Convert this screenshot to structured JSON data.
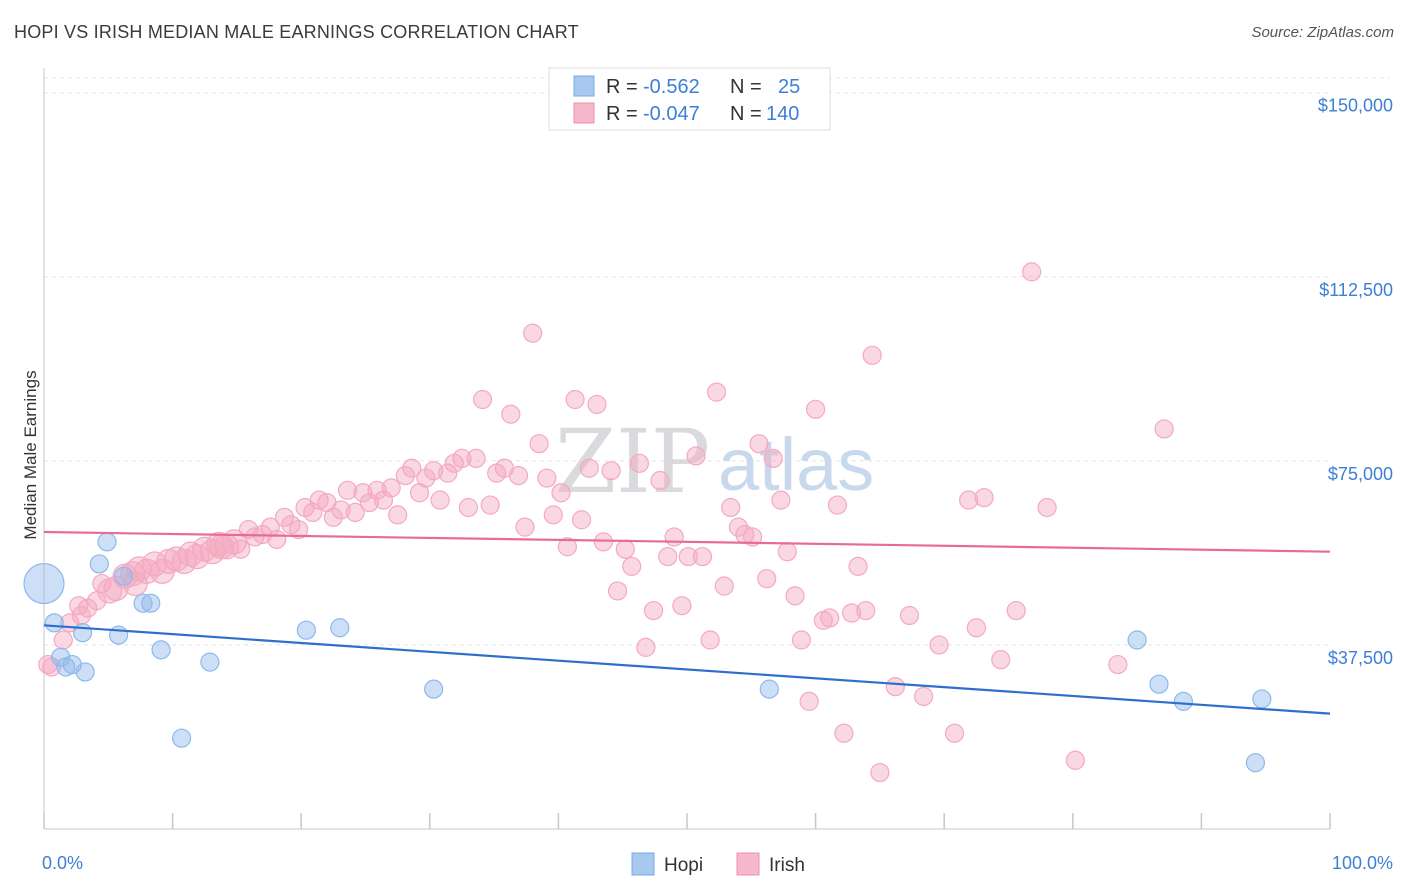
{
  "header": {
    "title": "HOPI VS IRISH MEDIAN MALE EARNINGS CORRELATION CHART",
    "source": "Source: ZipAtlas.com"
  },
  "watermark": {
    "zip": "ZIP",
    "atlas": "atlas"
  },
  "legend": {
    "rows": [
      {
        "r_label": "R = ",
        "r_value": "-0.562",
        "n_label": "N = ",
        "n_value": "25",
        "color": "#a8c8f0"
      },
      {
        "r_label": "R = ",
        "r_value": "-0.047",
        "n_label": "N = ",
        "n_value": "140",
        "color": "#f7b8cc"
      }
    ]
  },
  "chart_data": {
    "type": "scatter",
    "title": "HOPI VS IRISH MEDIAN MALE EARNINGS CORRELATION CHART",
    "ylabel": "Median Male Earnings",
    "xlabel": "",
    "xlim": [
      0,
      100
    ],
    "ylim": [
      0,
      153000
    ],
    "x_tick_labels": [
      "0.0%",
      "100.0%"
    ],
    "y_ticks": [
      {
        "value": 150000,
        "label": "$150,000"
      },
      {
        "value": 112500,
        "label": "$112,500"
      },
      {
        "value": 75000,
        "label": "$75,000"
      },
      {
        "value": 37500,
        "label": "$37,500"
      }
    ],
    "series": [
      {
        "name": "Hopi",
        "color": "#8db8ec",
        "trend": {
          "x": [
            0,
            100
          ],
          "y": [
            41500,
            23500
          ],
          "color": "#2f6fcc"
        },
        "points": [
          [
            0,
            50000
          ],
          [
            0.8,
            42000
          ],
          [
            1.3,
            35000
          ],
          [
            1.7,
            33000
          ],
          [
            2.2,
            33500
          ],
          [
            3.0,
            40000
          ],
          [
            3.2,
            32000
          ],
          [
            4.3,
            54000
          ],
          [
            4.9,
            58500
          ],
          [
            5.8,
            39500
          ],
          [
            6.2,
            51500
          ],
          [
            7.7,
            46000
          ],
          [
            8.3,
            46000
          ],
          [
            9.1,
            36500
          ],
          [
            10.7,
            18500
          ],
          [
            12.9,
            34000
          ],
          [
            20.4,
            40500
          ],
          [
            23.0,
            41000
          ],
          [
            30.3,
            28500
          ],
          [
            56.4,
            28500
          ],
          [
            85.0,
            38500
          ],
          [
            86.7,
            29500
          ],
          [
            88.6,
            26000
          ],
          [
            94.2,
            13500
          ],
          [
            94.7,
            26500
          ]
        ]
      },
      {
        "name": "Irish",
        "color": "#f4a9c0",
        "trend": {
          "x": [
            0,
            100
          ],
          "y": [
            60500,
            56500
          ],
          "color": "#e76b97"
        },
        "points": [
          [
            0.3,
            33500
          ],
          [
            1.5,
            38500
          ],
          [
            2.0,
            42000
          ],
          [
            2.7,
            45500
          ],
          [
            3.4,
            45000
          ],
          [
            4.1,
            46500
          ],
          [
            4.5,
            50000
          ],
          [
            5.1,
            48500
          ],
          [
            5.6,
            49000
          ],
          [
            6.3,
            51500
          ],
          [
            6.9,
            52000
          ],
          [
            7.4,
            53000
          ],
          [
            8.0,
            52500
          ],
          [
            8.6,
            54000
          ],
          [
            9.2,
            52500
          ],
          [
            9.7,
            54500
          ],
          [
            10.3,
            55000
          ],
          [
            10.9,
            54500
          ],
          [
            11.4,
            56000
          ],
          [
            11.9,
            55500
          ],
          [
            12.5,
            57000
          ],
          [
            13.1,
            56500
          ],
          [
            13.6,
            58000
          ],
          [
            14.2,
            57500
          ],
          [
            14.8,
            58500
          ],
          [
            15.3,
            57000
          ],
          [
            15.9,
            61000
          ],
          [
            16.4,
            59500
          ],
          [
            17.0,
            60000
          ],
          [
            17.6,
            61500
          ],
          [
            18.1,
            59000
          ],
          [
            18.7,
            63500
          ],
          [
            19.2,
            62000
          ],
          [
            19.8,
            61000
          ],
          [
            20.3,
            65500
          ],
          [
            20.9,
            64500
          ],
          [
            21.4,
            67000
          ],
          [
            22.0,
            66500
          ],
          [
            22.5,
            63500
          ],
          [
            23.1,
            65000
          ],
          [
            23.6,
            69000
          ],
          [
            24.2,
            64500
          ],
          [
            24.8,
            68500
          ],
          [
            25.3,
            66500
          ],
          [
            25.9,
            69000
          ],
          [
            26.4,
            67000
          ],
          [
            27.0,
            69500
          ],
          [
            27.5,
            64000
          ],
          [
            28.1,
            72000
          ],
          [
            28.6,
            73500
          ],
          [
            29.2,
            68500
          ],
          [
            29.7,
            71500
          ],
          [
            30.3,
            73000
          ],
          [
            30.8,
            67000
          ],
          [
            31.4,
            72500
          ],
          [
            31.9,
            74500
          ],
          [
            32.5,
            75500
          ],
          [
            33.0,
            65500
          ],
          [
            33.6,
            75500
          ],
          [
            34.1,
            87500
          ],
          [
            34.7,
            66000
          ],
          [
            35.2,
            72500
          ],
          [
            35.8,
            73500
          ],
          [
            36.3,
            84500
          ],
          [
            36.9,
            72000
          ],
          [
            37.4,
            61500
          ],
          [
            38.0,
            101000
          ],
          [
            38.5,
            78500
          ],
          [
            39.1,
            71500
          ],
          [
            39.6,
            64000
          ],
          [
            40.2,
            68500
          ],
          [
            40.7,
            57500
          ],
          [
            41.3,
            87500
          ],
          [
            41.8,
            63000
          ],
          [
            42.4,
            73500
          ],
          [
            43.0,
            86500
          ],
          [
            43.5,
            58500
          ],
          [
            44.1,
            73000
          ],
          [
            44.6,
            48500
          ],
          [
            45.2,
            57000
          ],
          [
            45.7,
            53500
          ],
          [
            46.3,
            74500
          ],
          [
            46.8,
            37000
          ],
          [
            47.4,
            44500
          ],
          [
            47.9,
            71000
          ],
          [
            48.5,
            55500
          ],
          [
            49.0,
            59500
          ],
          [
            49.6,
            45500
          ],
          [
            50.1,
            55500
          ],
          [
            50.7,
            76000
          ],
          [
            51.2,
            55500
          ],
          [
            51.8,
            38500
          ],
          [
            52.3,
            89000
          ],
          [
            52.9,
            49500
          ],
          [
            53.4,
            65500
          ],
          [
            54.0,
            61500
          ],
          [
            54.5,
            60000
          ],
          [
            55.1,
            59500
          ],
          [
            55.6,
            78500
          ],
          [
            56.2,
            51000
          ],
          [
            56.7,
            75500
          ],
          [
            57.3,
            67000
          ],
          [
            57.8,
            56500
          ],
          [
            58.4,
            47500
          ],
          [
            58.9,
            38500
          ],
          [
            59.5,
            26000
          ],
          [
            60.0,
            85500
          ],
          [
            60.6,
            42500
          ],
          [
            61.1,
            43000
          ],
          [
            61.7,
            66000
          ],
          [
            62.2,
            19500
          ],
          [
            62.8,
            44000
          ],
          [
            63.3,
            53500
          ],
          [
            63.9,
            44500
          ],
          [
            64.4,
            96500
          ],
          [
            65.0,
            11500
          ],
          [
            66.2,
            29000
          ],
          [
            67.3,
            43500
          ],
          [
            68.4,
            27000
          ],
          [
            69.6,
            37500
          ],
          [
            70.8,
            19500
          ],
          [
            71.9,
            67000
          ],
          [
            72.5,
            41000
          ],
          [
            73.1,
            67500
          ],
          [
            74.4,
            34500
          ],
          [
            75.6,
            44500
          ],
          [
            76.8,
            113500
          ],
          [
            78.0,
            65500
          ],
          [
            80.2,
            14000
          ],
          [
            83.5,
            33500
          ],
          [
            87.1,
            81500
          ],
          [
            0.6,
            33000
          ],
          [
            2.9,
            43500
          ],
          [
            7.1,
            50000
          ],
          [
            13.8,
            57500
          ]
        ]
      }
    ]
  },
  "bottom_legend": [
    {
      "label": "Hopi",
      "color": "#a8c8f0"
    },
    {
      "label": "Irish",
      "color": "#f7b8cc"
    }
  ]
}
